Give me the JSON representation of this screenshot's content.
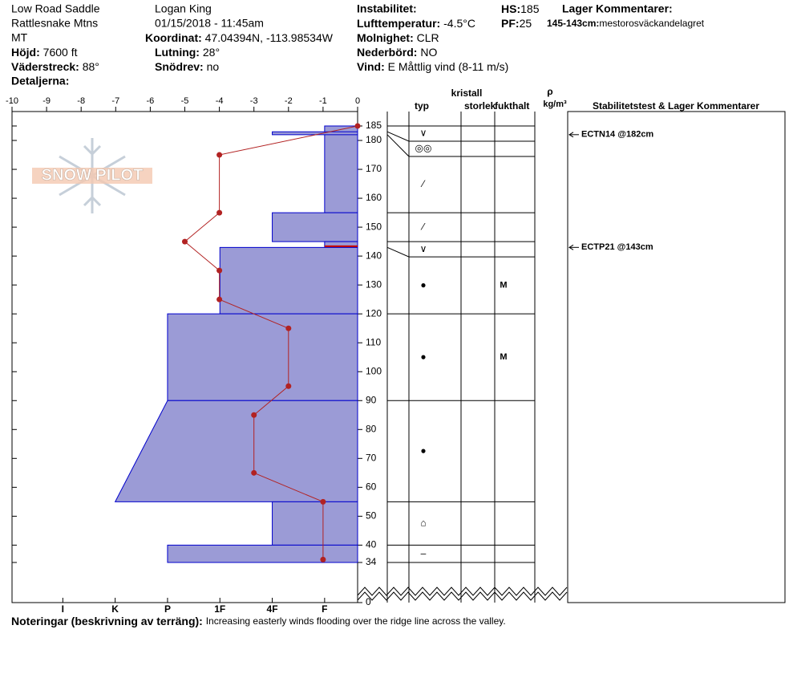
{
  "header": {
    "col1": {
      "location": "Low Road Saddle",
      "range": "Rattlesnake Mtns",
      "state": "MT",
      "elevation": {
        "label": "Höjd:",
        "value": "7600 ft"
      },
      "aspect": {
        "label": "Väderstreck:",
        "value": "88°"
      },
      "details": {
        "label": "Detaljerna:"
      }
    },
    "col2": {
      "observer": "Logan King",
      "datetime": "01/15/2018 - 11:45am",
      "coords": {
        "label": "Koordinat:",
        "value": "47.04394N, -113.98534W"
      },
      "slope": {
        "label": "Lutning:",
        "value": "28°"
      },
      "wind_loading": {
        "label": "Snödrev:",
        "value": "no"
      }
    },
    "col3": {
      "instability": {
        "label": "Instabilitet:"
      },
      "air_temp": {
        "label": "Lufttemperatur:",
        "value": "-4.5°C"
      },
      "sky": {
        "label": "Molnighet:",
        "value": "CLR"
      },
      "precip": {
        "label": "Nederbörd:",
        "value": "NO"
      },
      "wind": {
        "label": "Vind:",
        "value": "E Måttlig vind (8-11 m/s)"
      }
    },
    "col4": {
      "hs": {
        "label": "HS:",
        "value": "185"
      },
      "pf": {
        "label": "PF:",
        "value": "25"
      },
      "layer_comments": {
        "label": "Lager Kommentarer:",
        "range": "145-143cm:",
        "text": "mestorosväckandelagret"
      }
    }
  },
  "logo": "SNOW PILOT",
  "chart_data": {
    "type": "snow_profile",
    "xlim": [
      -10,
      0
    ],
    "xticks": [
      -10,
      -9,
      -8,
      -7,
      -6,
      -5,
      -4,
      -3,
      -2,
      -1,
      0
    ],
    "ylim": [
      0,
      190
    ],
    "yticks": [
      0,
      34,
      40,
      50,
      60,
      70,
      80,
      90,
      100,
      110,
      120,
      130,
      140,
      150,
      160,
      170,
      180,
      185
    ],
    "hardness_ticks": [
      {
        "value": 6,
        "label": "I"
      },
      {
        "value": 5,
        "label": "K"
      },
      {
        "value": 4,
        "label": "P"
      },
      {
        "value": 3,
        "label": "1F"
      },
      {
        "value": 2,
        "label": "4F"
      },
      {
        "value": 1,
        "label": "F"
      }
    ],
    "temperature": {
      "color": "#b22222",
      "depths": [
        185,
        175,
        155,
        145,
        135,
        125,
        115,
        95,
        85,
        65,
        55,
        35
      ],
      "values": [
        0,
        -4,
        -4,
        -5,
        -4,
        -4,
        -2,
        -2,
        -3,
        -3,
        -1,
        -1
      ]
    },
    "layers": {
      "color": "#9b9bd6",
      "edge": "#0000cc",
      "tops": [
        185,
        183,
        155,
        145,
        143,
        120,
        90,
        55,
        40
      ],
      "bottoms": [
        155,
        182,
        145,
        143,
        120,
        90,
        55,
        40,
        34
      ],
      "hardness_top": [
        1,
        2,
        2,
        1,
        3,
        4,
        4,
        2,
        4
      ],
      "hardness_bottom": [
        1,
        2,
        2,
        1,
        3,
        4,
        5,
        2,
        4
      ]
    },
    "concern_layer": 3,
    "concern_color": "#cc0000",
    "grains": {
      "tops": [
        185,
        183,
        182,
        155,
        145,
        143,
        120,
        90,
        55,
        40
      ],
      "bottoms": [
        183,
        182,
        155,
        145,
        143,
        120,
        90,
        55,
        40,
        34
      ],
      "types": [
        "∨",
        "◎◎",
        "⁄",
        "⁄",
        "∨",
        "●",
        "●",
        "●",
        "⌂",
        "–"
      ],
      "moisture": [
        null,
        null,
        null,
        null,
        null,
        "M",
        "M",
        null,
        null,
        null
      ]
    },
    "tests": [
      {
        "depth": 182,
        "label": "ECTN14 @182cm"
      },
      {
        "depth": 143,
        "label": "ECTP21 @143cm"
      }
    ],
    "columns": {
      "crystal": "kristall",
      "type": "typ",
      "size": "storlek",
      "moisture": "fukthalt",
      "rho": "ρ",
      "density_unit": "kg/m³",
      "comments": "Stabilitetstest & Lager Kommentarer"
    }
  },
  "notes": {
    "label": "Noteringar (beskrivning av terräng):",
    "text": "Increasing easterly winds flooding over the ridge line across the valley."
  }
}
